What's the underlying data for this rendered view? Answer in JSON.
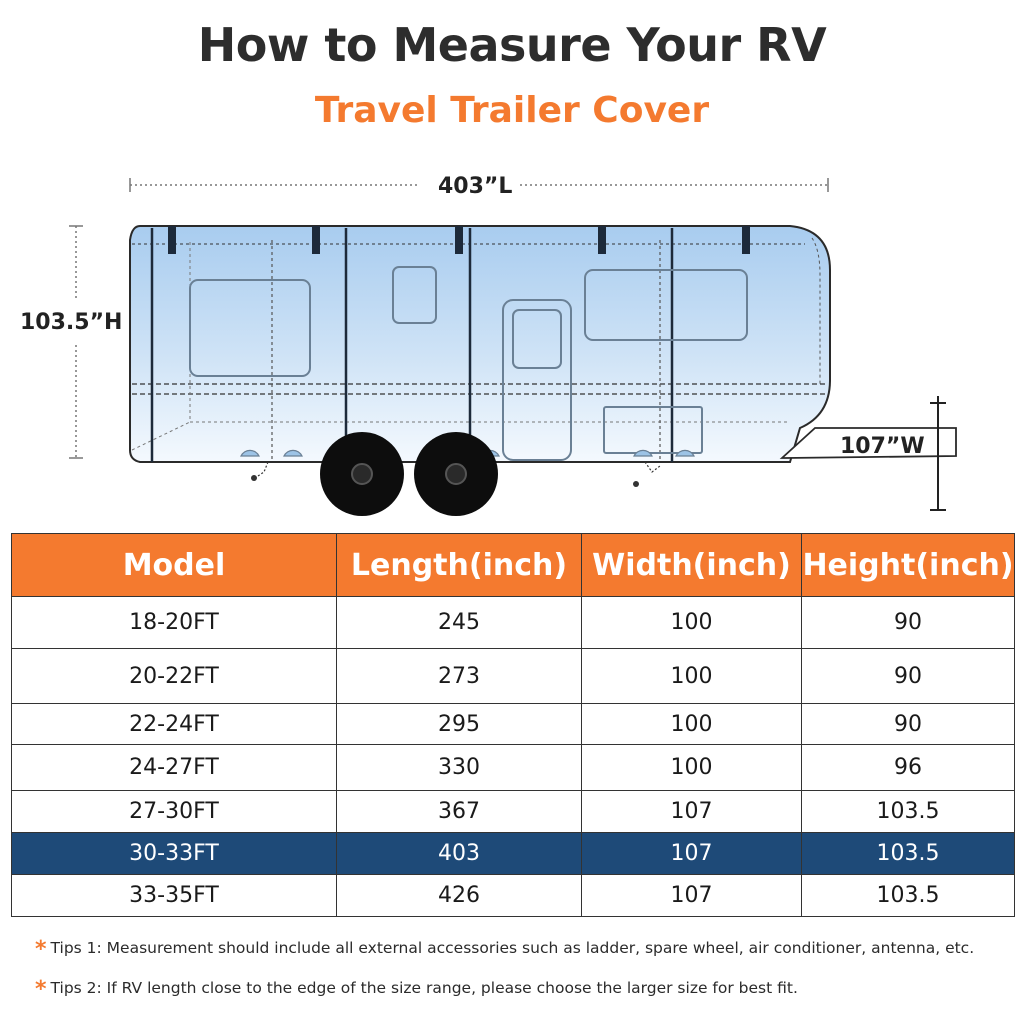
{
  "header": {
    "title": "How to Measure Your RV",
    "subtitle": "Travel Trailer Cover"
  },
  "dimensions": {
    "length_label": "403”L",
    "height_label": "103.5”H",
    "width_label": "107”W"
  },
  "table": {
    "headers": [
      "Model",
      "Length(inch)",
      "Width(inch)",
      "Height(inch)"
    ],
    "rows": [
      [
        "18-20FT",
        "245",
        "100",
        "90"
      ],
      [
        "20-22FT",
        "273",
        "100",
        "90"
      ],
      [
        "22-24FT",
        "295",
        "100",
        "90"
      ],
      [
        "24-27FT",
        "330",
        "100",
        "96"
      ],
      [
        "27-30FT",
        "367",
        "107",
        "103.5"
      ],
      [
        "30-33FT",
        "403",
        "107",
        "103.5"
      ],
      [
        "33-35FT",
        "426",
        "107",
        "103.5"
      ]
    ],
    "highlighted_row": "30-33FT"
  },
  "tips": [
    "Tips 1: Measurement should include all external accessories such as ladder, spare wheel, air conditioner, antenna, etc.",
    "Tips 2: If RV length close to the edge of the size range, please choose the larger size for best fit."
  ],
  "colors": {
    "accent": "#f47a2f",
    "highlight_row": "#1e4a78",
    "cover_blue": "#aacdf0"
  }
}
